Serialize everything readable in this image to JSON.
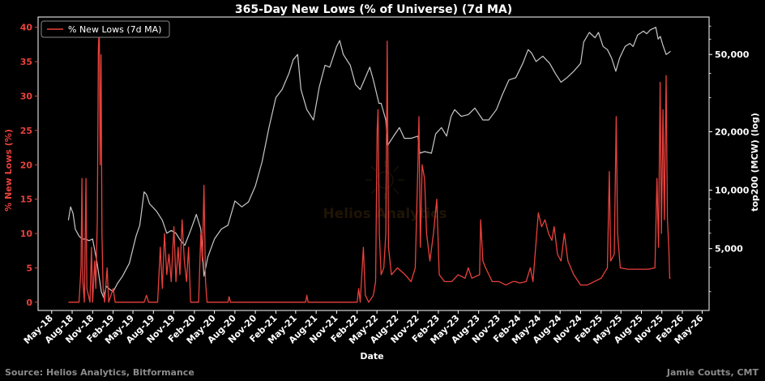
{
  "chart_data": {
    "type": "line",
    "title": "365-Day New Lows (% of Universe) (7d MA)",
    "xlabel": "Date",
    "ylabel_left": "% New Lows (%)",
    "ylabel_right": "top200 (MCW) (log)",
    "ylim_left": [
      -1.2,
      41.5
    ],
    "ylim_right_log": [
      2400,
      78000
    ],
    "x_range": [
      "2018-03-01",
      "2026-06-01"
    ],
    "x_ticks": [
      "May-18",
      "Aug-18",
      "Nov-18",
      "Feb-19",
      "May-19",
      "Aug-19",
      "Nov-19",
      "Feb-20",
      "May-20",
      "Aug-20",
      "Nov-20",
      "Feb-21",
      "May-21",
      "Aug-21",
      "Nov-21",
      "Feb-22",
      "May-22",
      "Aug-22",
      "Nov-22",
      "Feb-23",
      "May-23",
      "Aug-23",
      "Nov-23",
      "Feb-24",
      "May-24",
      "Aug-24",
      "Nov-24",
      "Feb-25",
      "May-25",
      "Aug-25",
      "Nov-25",
      "Feb-26",
      "May-26"
    ],
    "y_left_ticks": [
      0,
      5,
      10,
      15,
      20,
      25,
      30,
      35,
      40
    ],
    "y_right_ticks": [
      {
        "value": 5000,
        "label": "5,000"
      },
      {
        "value": 10000,
        "label": "10,000"
      },
      {
        "value": 20000,
        "label": "20,000"
      },
      {
        "value": 50000,
        "label": "50,000"
      }
    ],
    "legend": {
      "label": "% New Lows (7d MA)",
      "placement": "top-left"
    },
    "grid": false,
    "colors": {
      "new_lows": "#e8413c",
      "index": "#c8c8c8",
      "left_axis": "#e8413c",
      "right_axis": "#ffffff"
    },
    "series": [
      {
        "name": "% New Lows (7d MA)",
        "axis": "left",
        "points": [
          [
            "2018-07-15",
            0
          ],
          [
            "2018-09-01",
            0
          ],
          [
            "2018-09-10",
            5
          ],
          [
            "2018-09-14",
            18
          ],
          [
            "2018-09-18",
            3
          ],
          [
            "2018-09-25",
            0
          ],
          [
            "2018-10-02",
            18
          ],
          [
            "2018-10-06",
            2
          ],
          [
            "2018-10-20",
            0
          ],
          [
            "2018-10-27",
            8
          ],
          [
            "2018-11-01",
            0
          ],
          [
            "2018-11-10",
            6
          ],
          [
            "2018-11-15",
            2
          ],
          [
            "2018-11-22",
            12
          ],
          [
            "2018-11-27",
            37
          ],
          [
            "2018-12-01",
            40
          ],
          [
            "2018-12-05",
            20
          ],
          [
            "2018-12-09",
            36
          ],
          [
            "2018-12-13",
            10
          ],
          [
            "2018-12-18",
            2
          ],
          [
            "2018-12-25",
            0
          ],
          [
            "2019-01-05",
            5
          ],
          [
            "2019-01-12",
            0
          ],
          [
            "2019-02-01",
            2
          ],
          [
            "2019-02-10",
            0
          ],
          [
            "2019-06-20",
            0
          ],
          [
            "2019-07-01",
            1
          ],
          [
            "2019-07-10",
            0
          ],
          [
            "2019-08-20",
            0
          ],
          [
            "2019-09-01",
            8
          ],
          [
            "2019-09-10",
            2
          ],
          [
            "2019-09-20",
            10
          ],
          [
            "2019-09-30",
            4
          ],
          [
            "2019-10-10",
            7
          ],
          [
            "2019-10-20",
            3
          ],
          [
            "2019-11-01",
            11
          ],
          [
            "2019-11-10",
            3
          ],
          [
            "2019-11-20",
            8
          ],
          [
            "2019-11-28",
            4
          ],
          [
            "2019-12-08",
            12
          ],
          [
            "2019-12-18",
            6
          ],
          [
            "2019-12-28",
            3
          ],
          [
            "2020-01-06",
            8
          ],
          [
            "2020-01-15",
            0
          ],
          [
            "2020-02-20",
            0
          ],
          [
            "2020-03-01",
            10
          ],
          [
            "2020-03-08",
            6
          ],
          [
            "2020-03-15",
            17
          ],
          [
            "2020-03-22",
            3
          ],
          [
            "2020-03-29",
            0
          ],
          [
            "2020-07-01",
            0
          ],
          [
            "2020-07-06",
            0.8
          ],
          [
            "2020-07-12",
            0
          ],
          [
            "2021-06-15",
            0
          ],
          [
            "2021-06-20",
            1
          ],
          [
            "2021-06-26",
            0
          ],
          [
            "2022-02-01",
            0
          ],
          [
            "2022-02-08",
            2
          ],
          [
            "2022-02-15",
            0
          ],
          [
            "2022-03-01",
            8
          ],
          [
            "2022-03-10",
            1
          ],
          [
            "2022-03-25",
            0
          ],
          [
            "2022-04-15",
            1
          ],
          [
            "2022-04-25",
            3
          ],
          [
            "2022-05-02",
            25
          ],
          [
            "2022-05-06",
            28
          ],
          [
            "2022-05-12",
            10
          ],
          [
            "2022-05-20",
            4
          ],
          [
            "2022-06-01",
            5
          ],
          [
            "2022-06-10",
            10
          ],
          [
            "2022-06-16",
            38
          ],
          [
            "2022-06-22",
            8
          ],
          [
            "2022-07-05",
            4
          ],
          [
            "2022-08-01",
            5
          ],
          [
            "2022-09-05",
            4
          ],
          [
            "2022-10-01",
            3
          ],
          [
            "2022-10-20",
            5
          ],
          [
            "2022-11-01",
            20
          ],
          [
            "2022-11-06",
            27
          ],
          [
            "2022-11-12",
            8
          ],
          [
            "2022-11-20",
            20
          ],
          [
            "2022-12-01",
            18
          ],
          [
            "2022-12-10",
            10
          ],
          [
            "2022-12-25",
            6
          ],
          [
            "2023-01-10",
            10
          ],
          [
            "2023-01-25",
            15
          ],
          [
            "2023-02-05",
            4
          ],
          [
            "2023-03-01",
            3
          ],
          [
            "2023-04-01",
            3
          ],
          [
            "2023-05-01",
            4
          ],
          [
            "2023-06-01",
            3.5
          ],
          [
            "2023-06-15",
            5
          ],
          [
            "2023-07-01",
            3.5
          ],
          [
            "2023-08-05",
            4
          ],
          [
            "2023-08-10",
            12
          ],
          [
            "2023-08-20",
            6
          ],
          [
            "2023-09-01",
            5
          ],
          [
            "2023-10-01",
            3
          ],
          [
            "2023-11-01",
            3
          ],
          [
            "2023-12-01",
            2.5
          ],
          [
            "2024-01-01",
            3
          ],
          [
            "2024-01-15",
            3
          ],
          [
            "2024-02-01",
            2.8
          ],
          [
            "2024-03-01",
            3
          ],
          [
            "2024-03-20",
            5
          ],
          [
            "2024-04-01",
            3
          ],
          [
            "2024-04-25",
            13
          ],
          [
            "2024-05-10",
            11
          ],
          [
            "2024-05-25",
            12
          ],
          [
            "2024-06-10",
            10
          ],
          [
            "2024-06-25",
            9
          ],
          [
            "2024-07-05",
            11
          ],
          [
            "2024-07-20",
            7
          ],
          [
            "2024-08-05",
            6
          ],
          [
            "2024-08-20",
            10
          ],
          [
            "2024-09-05",
            6
          ],
          [
            "2024-10-01",
            4
          ],
          [
            "2024-11-01",
            2.5
          ],
          [
            "2024-12-01",
            2.5
          ],
          [
            "2025-01-01",
            3
          ],
          [
            "2025-02-01",
            3.5
          ],
          [
            "2025-03-01",
            5
          ],
          [
            "2025-03-10",
            19
          ],
          [
            "2025-03-16",
            6
          ],
          [
            "2025-04-01",
            7
          ],
          [
            "2025-04-10",
            27
          ],
          [
            "2025-04-16",
            10
          ],
          [
            "2025-04-28",
            5
          ],
          [
            "2025-06-01",
            4.8
          ],
          [
            "2025-07-01",
            4.8
          ],
          [
            "2025-08-01",
            4.8
          ],
          [
            "2025-09-01",
            4.8
          ],
          [
            "2025-10-01",
            5
          ],
          [
            "2025-10-10",
            18
          ],
          [
            "2025-10-17",
            8
          ],
          [
            "2025-10-24",
            32
          ],
          [
            "2025-10-30",
            10
          ],
          [
            "2025-11-06",
            28
          ],
          [
            "2025-11-12",
            12
          ],
          [
            "2025-11-20",
            33
          ],
          [
            "2025-11-26",
            12
          ],
          [
            "2025-12-02",
            8
          ],
          [
            "2025-12-06",
            3.5
          ],
          [
            "2025-12-10",
            3.5
          ]
        ]
      },
      {
        "name": "top200 (MCW) (log)",
        "axis": "right",
        "points": [
          [
            "2018-07-15",
            7000
          ],
          [
            "2018-07-25",
            8200
          ],
          [
            "2018-08-05",
            7600
          ],
          [
            "2018-08-15",
            6300
          ],
          [
            "2018-09-01",
            5800
          ],
          [
            "2018-09-15",
            5600
          ],
          [
            "2018-10-01",
            5600
          ],
          [
            "2018-10-15",
            5500
          ],
          [
            "2018-11-01",
            5600
          ],
          [
            "2018-11-20",
            4300
          ],
          [
            "2018-12-10",
            3000
          ],
          [
            "2018-12-20",
            2800
          ],
          [
            "2019-01-01",
            3200
          ],
          [
            "2019-01-15",
            3100
          ],
          [
            "2019-02-01",
            3000
          ],
          [
            "2019-02-20",
            3300
          ],
          [
            "2019-03-15",
            3600
          ],
          [
            "2019-04-15",
            4200
          ],
          [
            "2019-05-15",
            5800
          ],
          [
            "2019-06-01",
            6600
          ],
          [
            "2019-06-20",
            9800
          ],
          [
            "2019-07-01",
            9500
          ],
          [
            "2019-07-15",
            8500
          ],
          [
            "2019-08-15",
            7800
          ],
          [
            "2019-09-10",
            7000
          ],
          [
            "2019-09-30",
            6000
          ],
          [
            "2019-10-20",
            6200
          ],
          [
            "2019-11-10",
            6000
          ],
          [
            "2019-12-01",
            5500
          ],
          [
            "2019-12-20",
            5200
          ],
          [
            "2020-01-15",
            6200
          ],
          [
            "2020-02-10",
            7500
          ],
          [
            "2020-03-01",
            6300
          ],
          [
            "2020-03-15",
            3600
          ],
          [
            "2020-04-01",
            4500
          ],
          [
            "2020-05-01",
            5600
          ],
          [
            "2020-06-01",
            6300
          ],
          [
            "2020-07-01",
            6600
          ],
          [
            "2020-08-01",
            8800
          ],
          [
            "2020-09-01",
            8200
          ],
          [
            "2020-10-01",
            8700
          ],
          [
            "2020-11-01",
            10500
          ],
          [
            "2020-12-01",
            14000
          ],
          [
            "2021-01-01",
            21000
          ],
          [
            "2021-02-01",
            30000
          ],
          [
            "2021-03-01",
            33000
          ],
          [
            "2021-04-01",
            40000
          ],
          [
            "2021-04-20",
            47000
          ],
          [
            "2021-05-10",
            50000
          ],
          [
            "2021-05-25",
            33000
          ],
          [
            "2021-06-20",
            26000
          ],
          [
            "2021-07-20",
            23000
          ],
          [
            "2021-08-15",
            34000
          ],
          [
            "2021-09-10",
            44000
          ],
          [
            "2021-10-01",
            43000
          ],
          [
            "2021-11-01",
            55000
          ],
          [
            "2021-11-15",
            59000
          ],
          [
            "2021-12-01",
            50000
          ],
          [
            "2022-01-01",
            44000
          ],
          [
            "2022-01-25",
            35000
          ],
          [
            "2022-02-15",
            33000
          ],
          [
            "2022-03-01",
            36000
          ],
          [
            "2022-03-30",
            43000
          ],
          [
            "2022-04-15",
            37000
          ],
          [
            "2022-05-10",
            28000
          ],
          [
            "2022-05-20",
            28000
          ],
          [
            "2022-06-10",
            23000
          ],
          [
            "2022-06-18",
            17000
          ],
          [
            "2022-07-15",
            19000
          ],
          [
            "2022-08-10",
            21000
          ],
          [
            "2022-09-01",
            18500
          ],
          [
            "2022-10-01",
            18500
          ],
          [
            "2022-11-01",
            19000
          ],
          [
            "2022-11-10",
            15500
          ],
          [
            "2022-12-01",
            15800
          ],
          [
            "2023-01-01",
            15500
          ],
          [
            "2023-01-20",
            19500
          ],
          [
            "2023-02-15",
            21000
          ],
          [
            "2023-03-10",
            19000
          ],
          [
            "2023-03-30",
            24000
          ],
          [
            "2023-04-15",
            26000
          ],
          [
            "2023-05-15",
            24000
          ],
          [
            "2023-06-15",
            24500
          ],
          [
            "2023-07-15",
            26500
          ],
          [
            "2023-08-20",
            23000
          ],
          [
            "2023-09-15",
            23000
          ],
          [
            "2023-10-20",
            26000
          ],
          [
            "2023-11-15",
            31000
          ],
          [
            "2023-12-15",
            37000
          ],
          [
            "2024-01-15",
            38000
          ],
          [
            "2024-02-15",
            45000
          ],
          [
            "2024-03-10",
            53000
          ],
          [
            "2024-03-25",
            51000
          ],
          [
            "2024-04-15",
            46000
          ],
          [
            "2024-05-15",
            49000
          ],
          [
            "2024-06-15",
            45000
          ],
          [
            "2024-07-10",
            40000
          ],
          [
            "2024-08-05",
            36000
          ],
          [
            "2024-09-01",
            38000
          ],
          [
            "2024-10-01",
            41000
          ],
          [
            "2024-11-01",
            45000
          ],
          [
            "2024-11-15",
            58000
          ],
          [
            "2024-12-10",
            65000
          ],
          [
            "2025-01-05",
            61000
          ],
          [
            "2025-01-20",
            65000
          ],
          [
            "2025-02-10",
            55000
          ],
          [
            "2025-03-01",
            53000
          ],
          [
            "2025-03-20",
            48000
          ],
          [
            "2025-04-08",
            41000
          ],
          [
            "2025-04-25",
            48000
          ],
          [
            "2025-05-20",
            55000
          ],
          [
            "2025-06-10",
            57000
          ],
          [
            "2025-06-25",
            55000
          ],
          [
            "2025-07-15",
            63000
          ],
          [
            "2025-08-10",
            66000
          ],
          [
            "2025-08-25",
            64000
          ],
          [
            "2025-09-10",
            67000
          ],
          [
            "2025-10-05",
            69000
          ],
          [
            "2025-10-15",
            60000
          ],
          [
            "2025-10-25",
            62000
          ],
          [
            "2025-11-05",
            56000
          ],
          [
            "2025-11-20",
            50000
          ],
          [
            "2025-12-01",
            51000
          ],
          [
            "2025-12-10",
            52000
          ]
        ]
      }
    ],
    "footer_left": "Source: Helios Analytics, Bitformance",
    "footer_right": "Jamie Coutts, CMT",
    "watermark": "Helios Analytics"
  }
}
